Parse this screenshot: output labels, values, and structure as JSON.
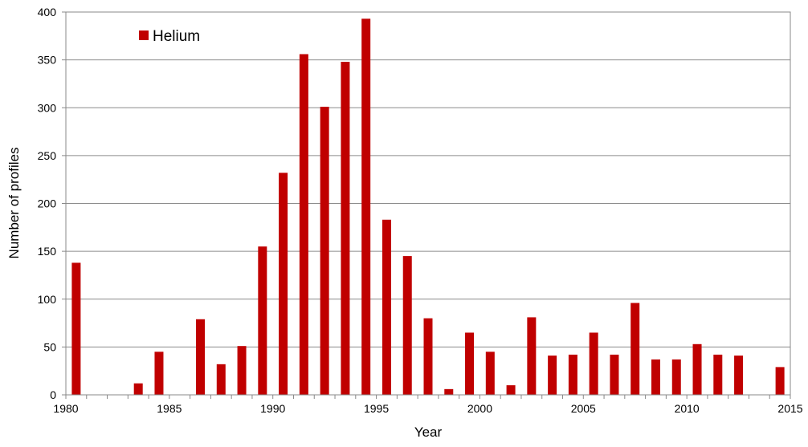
{
  "chart_data": {
    "type": "bar",
    "title": "",
    "xlabel": "Year",
    "ylabel": "Number of profiles",
    "xlim": [
      1980,
      2015
    ],
    "ylim": [
      0,
      400
    ],
    "x_ticks": [
      1980,
      1985,
      1990,
      1995,
      2000,
      2005,
      2010,
      2015
    ],
    "y_ticks": [
      0,
      50,
      100,
      150,
      200,
      250,
      300,
      350,
      400
    ],
    "grid": "horizontal",
    "legend": "top-left",
    "series": [
      {
        "name": "Helium",
        "color": "#c00000",
        "x": [
          1981,
          1984,
          1985,
          1987,
          1988,
          1989,
          1990,
          1991,
          1992,
          1993,
          1994,
          1995,
          1996,
          1997,
          1998,
          1999,
          2000,
          2001,
          2002,
          2003,
          2004,
          2005,
          2006,
          2007,
          2008,
          2009,
          2010,
          2011,
          2012,
          2013,
          2015
        ],
        "values": [
          138,
          12,
          45,
          79,
          32,
          51,
          155,
          232,
          356,
          301,
          348,
          393,
          183,
          145,
          80,
          6,
          65,
          45,
          10,
          81,
          41,
          42,
          65,
          42,
          96,
          37,
          37,
          53,
          42,
          41,
          29
        ]
      }
    ]
  }
}
